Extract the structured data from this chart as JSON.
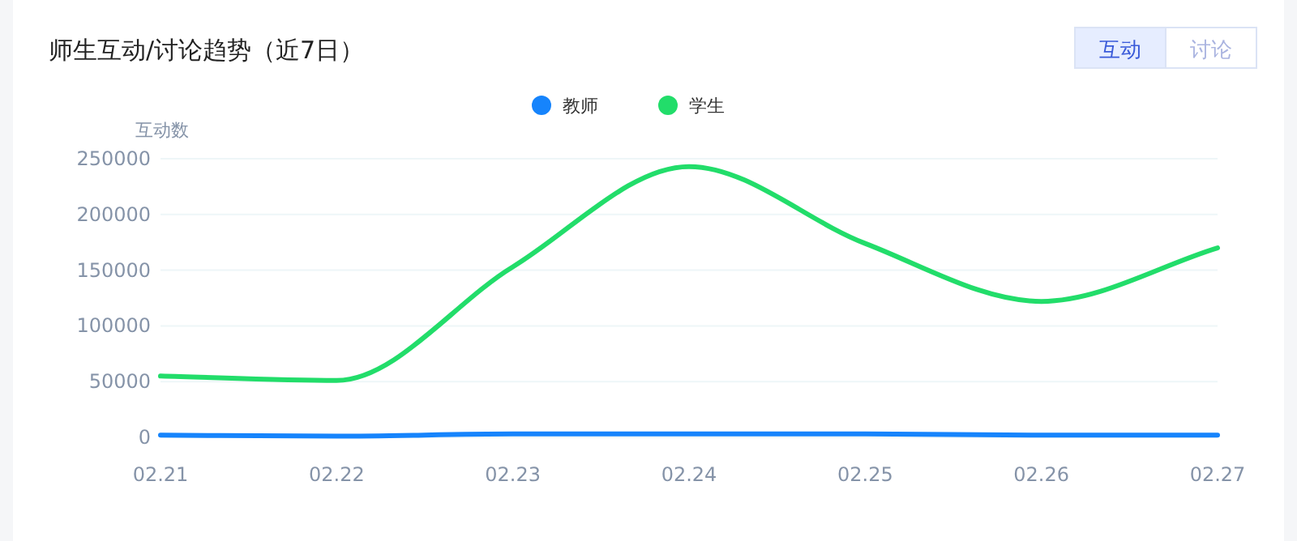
{
  "chart_data": {
    "type": "line",
    "title": "师生互动/讨论趋势（近7日）",
    "ylabel": "互动数",
    "annotations": [
      "互动",
      "讨论"
    ],
    "categories": [
      "02.21",
      "02.22",
      "02.23",
      "02.24",
      "02.25",
      "02.26",
      "02.27"
    ],
    "series": [
      {
        "name": "教师",
        "color": "#1684fc",
        "values": [
          2000,
          1000,
          3000,
          3000,
          3000,
          2000,
          2000
        ]
      },
      {
        "name": "学生",
        "color": "#22dd6a",
        "values": [
          55000,
          51000,
          153000,
          243000,
          174000,
          122000,
          170000
        ]
      }
    ],
    "ylim": [
      0,
      250000
    ],
    "yticks": [
      0,
      50000,
      100000,
      150000,
      200000,
      250000
    ],
    "grid": "y",
    "legend": "top",
    "marker": "none",
    "line_style": "solid"
  }
}
